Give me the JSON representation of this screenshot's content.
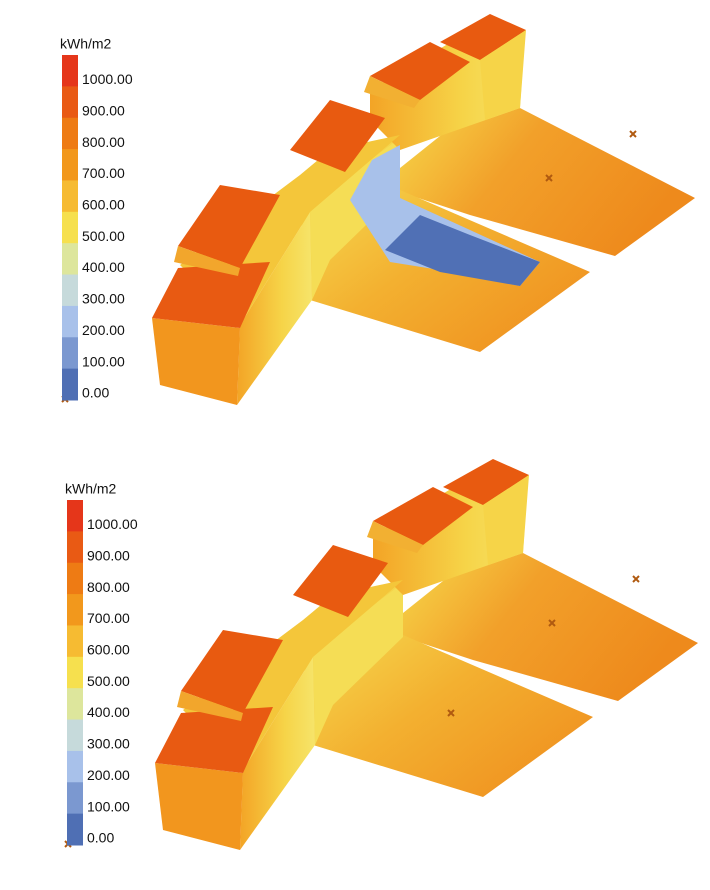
{
  "panels": [
    {
      "legend": {
        "unit": "kWh/m2",
        "labels": [
          "1000.00",
          "900.00",
          "800.00",
          "700.00",
          "600.00",
          "500.00",
          "400.00",
          "300.00",
          "200.00",
          "100.00",
          "0.00"
        ],
        "colors": [
          "#e5361a",
          "#e95a14",
          "#ee7b14",
          "#f2981c",
          "#f6bb32",
          "#f6e04e",
          "#dde69c",
          "#c6dadb",
          "#a8c1ea",
          "#7b98d0",
          "#4f6fb4"
        ]
      }
    },
    {
      "legend": {
        "unit": "kWh/m2",
        "labels": [
          "1000.00",
          "900.00",
          "800.00",
          "700.00",
          "600.00",
          "500.00",
          "400.00",
          "300.00",
          "200.00",
          "100.00",
          "0.00"
        ],
        "colors": [
          "#e5361a",
          "#e95a14",
          "#ee7b14",
          "#f2981c",
          "#f6bb32",
          "#f6e04e",
          "#dde69c",
          "#c6dadb",
          "#a8c1ea",
          "#7b98d0",
          "#4f6fb4"
        ]
      }
    }
  ]
}
